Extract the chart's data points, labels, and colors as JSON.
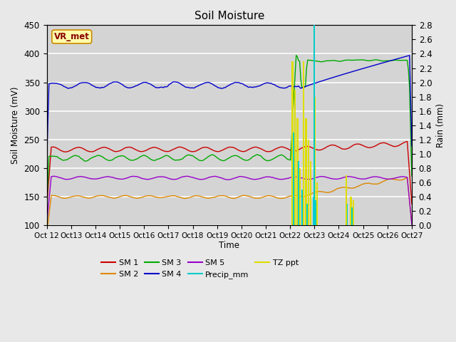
{
  "title": "Soil Moisture",
  "xlabel": "Time",
  "ylabel_left": "Soil Moisture (mV)",
  "ylabel_right": "Rain (mm)",
  "ylim_left": [
    100,
    450
  ],
  "ylim_right": [
    0.0,
    2.8
  ],
  "background_color": "#e8e8e8",
  "plot_bg_color": "#d8d8d8",
  "grid_color": "#f0f0f0",
  "x_labels": [
    "Oct 12",
    "Oct 13",
    "Oct 14",
    "Oct 15",
    "Oct 16",
    "Oct 17",
    "Oct 18",
    "Oct 19",
    "Oct 20",
    "Oct 21",
    "Oct 22",
    "Oct 23",
    "Oct 24",
    "Oct 25",
    "Oct 26",
    "Oct 27"
  ],
  "n_days": 16,
  "sm1_color": "#cc0000",
  "sm2_color": "#dd8800",
  "sm3_color": "#00aa00",
  "sm4_color": "#0000cc",
  "sm5_color": "#9900cc",
  "precip_color": "#00cccc",
  "tz_color": "#dddd00",
  "vr_met_bg": "#ffffaa",
  "vr_met_border": "#cc8800",
  "vr_met_text": "#880000",
  "legend_line_colors": {
    "SM 1": "#cc0000",
    "SM 2": "#dd8800",
    "SM 3": "#00aa00",
    "SM 4": "#0000cc",
    "SM 5": "#9900cc",
    "Precip_mm": "#00cccc",
    "TZ ppt": "#dddd00"
  }
}
